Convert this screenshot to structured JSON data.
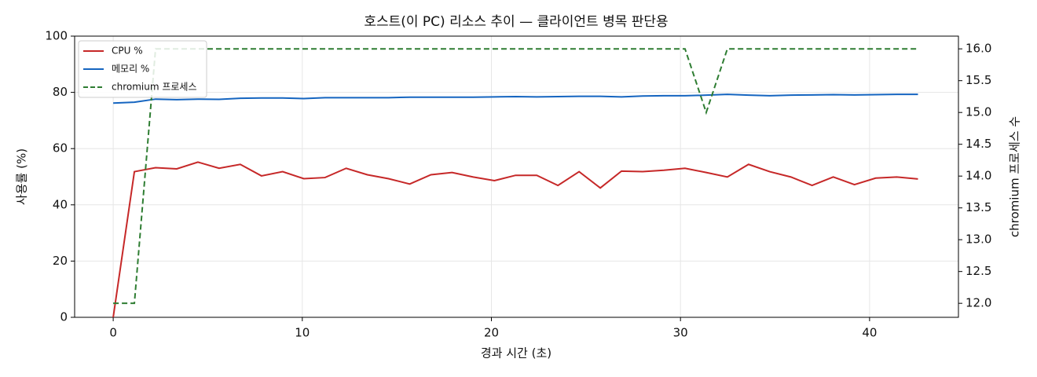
{
  "chart_data": {
    "type": "line",
    "title": "호스트(이 PC) 리소스 추이 — 클라이언트 병목 판단용",
    "x_label": "경과 시간 (초)",
    "y_label": "사용률 (%)",
    "y2_label": "chromium 프로세스 수",
    "x": [
      0,
      1.12,
      2.24,
      3.36,
      4.48,
      5.6,
      6.72,
      7.84,
      8.96,
      10.08,
      11.2,
      12.32,
      13.44,
      14.56,
      15.68,
      16.8,
      17.92,
      19.04,
      20.16,
      21.28,
      22.4,
      23.52,
      24.64,
      25.76,
      26.88,
      28,
      29.12,
      30.24,
      31.36,
      32.48,
      33.6,
      34.72,
      35.84,
      36.96,
      38.08,
      39.2,
      40.32,
      41.44,
      42.56
    ],
    "series": [
      {
        "name": "CPU %",
        "color": "#c62828",
        "dash": false,
        "values": [
          0,
          51.8,
          53.2,
          52.8,
          55.2,
          53,
          54.4,
          50.3,
          51.8,
          49.3,
          49.7,
          53,
          50.7,
          49.3,
          47.4,
          50.7,
          51.5,
          49.9,
          48.6,
          50.5,
          50.5,
          46.9,
          51.8,
          46,
          52,
          51.8,
          52.3,
          53,
          51.5,
          49.9,
          54.4,
          51.8,
          49.9,
          46.9,
          49.9,
          47.2,
          49.5,
          49.9,
          49.2
        ]
      },
      {
        "name": "메모리 %",
        "color": "#1565c0",
        "dash": false,
        "values": [
          76.2,
          76.5,
          77.6,
          77.4,
          77.6,
          77.5,
          77.9,
          78,
          78,
          77.8,
          78.1,
          78.1,
          78.1,
          78.1,
          78.3,
          78.3,
          78.3,
          78.3,
          78.4,
          78.5,
          78.4,
          78.5,
          78.6,
          78.6,
          78.4,
          78.7,
          78.8,
          78.8,
          79,
          79.3,
          79,
          78.8,
          79,
          79.1,
          79.2,
          79.1,
          79.2,
          79.3,
          79.3
        ]
      },
      {
        "name": "chromium 프로세스",
        "color": "#2e7d32",
        "dash": true,
        "axis": "y2",
        "values": [
          12,
          12,
          16,
          16,
          16,
          16,
          16,
          16,
          16,
          16,
          16,
          16,
          16,
          16,
          16,
          16,
          16,
          16,
          16,
          16,
          16,
          16,
          16,
          16,
          16,
          16,
          16,
          16,
          15,
          16,
          16,
          16,
          16,
          16,
          16,
          16,
          16,
          16,
          16
        ]
      }
    ],
    "xlim": [
      -2.04,
      44.7
    ],
    "xticks": [
      0,
      10,
      20,
      30,
      40
    ],
    "ylim": [
      0,
      100
    ],
    "yticks": [
      0,
      20,
      40,
      60,
      80,
      100
    ],
    "y2lim": [
      11.78,
      16.2
    ],
    "y2ticks": [
      {
        "value": 12,
        "label": "12.0"
      },
      {
        "value": 12.5,
        "label": "12.5"
      },
      {
        "value": 13,
        "label": "13.0"
      },
      {
        "value": 13.5,
        "label": "13.5"
      },
      {
        "value": 14,
        "label": "14.0"
      },
      {
        "value": 14.5,
        "label": "14.5"
      },
      {
        "value": 15,
        "label": "15.0"
      },
      {
        "value": 15.5,
        "label": "15.5"
      },
      {
        "value": 16,
        "label": "16.0"
      }
    ],
    "grid": true,
    "legend": "upper-left"
  }
}
